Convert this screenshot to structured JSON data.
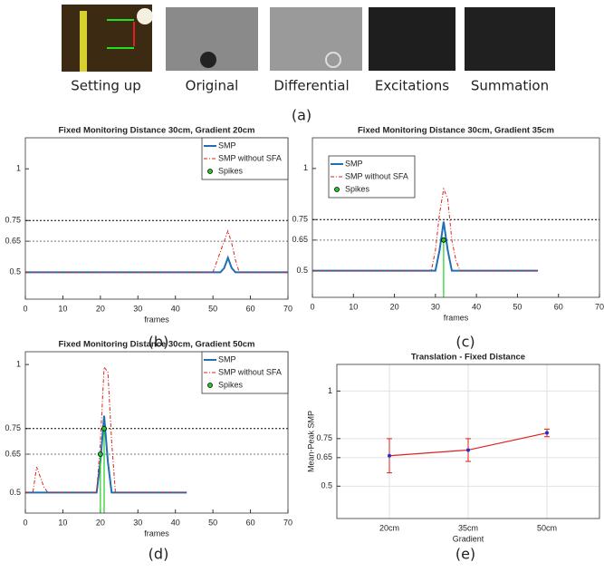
{
  "figure_a": {
    "captions": [
      "Setting up",
      "Original",
      "Differential",
      "Excitations",
      "Summation"
    ],
    "label": "(a)"
  },
  "chart_data": [
    {
      "type": "line",
      "title": "Fixed Monitoring Distance 30cm, Gradient 20cm",
      "x_label": "frames",
      "label": "(b)",
      "xlim": [
        0,
        70
      ],
      "xticks": [
        0,
        10,
        20,
        30,
        40,
        50,
        60,
        70
      ],
      "ylim": [
        0.37,
        1.15
      ],
      "yticks": [
        0.5,
        0.65,
        0.75,
        1
      ],
      "reference_lines": [
        0.75,
        0.65
      ],
      "grid": false,
      "legend": "upper right",
      "series": [
        {
          "name": "SMP",
          "color": "#1f6fb4",
          "x": [
            0,
            52,
            53,
            54,
            55,
            56,
            70
          ],
          "values": [
            0.5,
            0.5,
            0.52,
            0.57,
            0.52,
            0.5,
            0.5
          ]
        },
        {
          "name": "SMP without SFA",
          "color": "#e0201b",
          "x": [
            0,
            50,
            51,
            52,
            53,
            54,
            55,
            56,
            57,
            70
          ],
          "values": [
            0.5,
            0.5,
            0.55,
            0.6,
            0.65,
            0.7,
            0.64,
            0.56,
            0.5,
            0.5
          ]
        },
        {
          "name": "Spikes",
          "color": "#22cc22",
          "x": [],
          "values": []
        }
      ]
    },
    {
      "type": "line",
      "title": "Fixed Monitoring Distance 30cm, Gradient 35cm",
      "x_label": "frames",
      "label": "(c)",
      "xlim": [
        0,
        70
      ],
      "xticks": [
        0,
        10,
        20,
        30,
        40,
        50,
        60,
        70
      ],
      "ylim": [
        0.37,
        1.15
      ],
      "yticks": [
        0.5,
        0.65,
        0.75,
        1
      ],
      "reference_lines": [
        0.75,
        0.65
      ],
      "grid": false,
      "legend": "upper left",
      "series": [
        {
          "name": "SMP",
          "color": "#1f6fb4",
          "x": [
            0,
            30,
            31,
            32,
            33,
            34,
            55
          ],
          "values": [
            0.5,
            0.5,
            0.6,
            0.74,
            0.6,
            0.5,
            0.5
          ]
        },
        {
          "name": "SMP without SFA",
          "color": "#e0201b",
          "x": [
            0,
            29,
            30,
            31,
            32,
            33,
            34,
            35,
            36,
            55
          ],
          "values": [
            0.5,
            0.5,
            0.6,
            0.78,
            0.9,
            0.85,
            0.65,
            0.55,
            0.5,
            0.5
          ]
        },
        {
          "name": "Spikes",
          "color": "#22cc22",
          "x": [
            32
          ],
          "values": [
            0.65
          ]
        }
      ]
    },
    {
      "type": "line",
      "title": "Fixed Monitoring Distance 30cm, Gradient 50cm",
      "x_label": "frames",
      "label": "(d)",
      "xlim": [
        0,
        70
      ],
      "xticks": [
        0,
        10,
        20,
        30,
        40,
        50,
        60,
        70
      ],
      "ylim": [
        0.42,
        1.05
      ],
      "yticks": [
        0.5,
        0.65,
        0.75,
        1
      ],
      "reference_lines": [
        0.75,
        0.65
      ],
      "grid": false,
      "legend": "upper right",
      "series": [
        {
          "name": "SMP",
          "color": "#1f6fb4",
          "x": [
            0,
            19,
            20,
            21,
            22,
            23,
            43
          ],
          "values": [
            0.5,
            0.5,
            0.62,
            0.8,
            0.62,
            0.5,
            0.5
          ]
        },
        {
          "name": "SMP without SFA",
          "color": "#e0201b",
          "x": [
            0,
            2,
            3,
            5,
            6,
            19,
            20,
            21,
            22,
            23,
            24,
            43
          ],
          "values": [
            0.5,
            0.5,
            0.6,
            0.52,
            0.5,
            0.5,
            0.7,
            0.99,
            0.97,
            0.7,
            0.5,
            0.5
          ]
        },
        {
          "name": "Spikes",
          "color": "#22cc22",
          "x": [
            20,
            21
          ],
          "values": [
            0.65,
            0.75
          ]
        }
      ]
    },
    {
      "type": "errorbar",
      "title": "Translation - Fixed Distance",
      "x_label": "Gradient",
      "y_label": "Mean-Peak SMP",
      "label": "(e)",
      "categories": [
        "20cm",
        "35cm",
        "50cm"
      ],
      "values": [
        0.66,
        0.69,
        0.78
      ],
      "errors": [
        0.09,
        0.06,
        0.02
      ],
      "color": "#e0201b",
      "marker_color": "#2a2ad0",
      "ylim": [
        0.33,
        1.14
      ],
      "yticks": [
        0.5,
        0.65,
        0.75,
        1
      ],
      "grid": true
    }
  ]
}
